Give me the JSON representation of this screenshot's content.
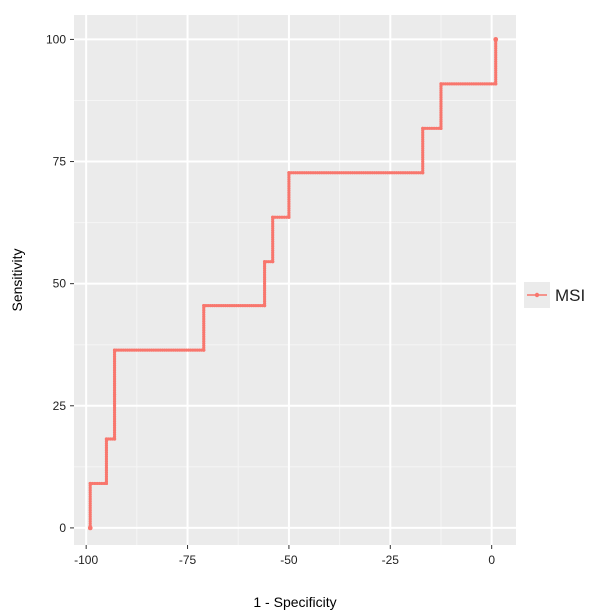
{
  "chart_data": {
    "type": "line",
    "title": "",
    "xlabel": "1 - Specificity",
    "ylabel": "Sensitivity",
    "xlim": [
      -103,
      6
    ],
    "ylim": [
      -3.5,
      105
    ],
    "x_ticks": [
      -100,
      -75,
      -50,
      -25,
      0
    ],
    "y_ticks": [
      0,
      25,
      50,
      75,
      100
    ],
    "grid": true,
    "legend_position": "right",
    "series": [
      {
        "name": "MSI",
        "color": "#f8766d",
        "step": true,
        "points": [
          [
            -99,
            0
          ],
          [
            -99,
            9.1
          ],
          [
            -95,
            9.1
          ],
          [
            -95,
            18.2
          ],
          [
            -93,
            18.2
          ],
          [
            -93,
            27.3
          ],
          [
            -93,
            36.4
          ],
          [
            -71,
            36.4
          ],
          [
            -71,
            45.5
          ],
          [
            -56,
            45.5
          ],
          [
            -56,
            54.5
          ],
          [
            -54,
            54.5
          ],
          [
            -54,
            63.6
          ],
          [
            -50,
            63.6
          ],
          [
            -50,
            72.7
          ],
          [
            -17,
            72.7
          ],
          [
            -17,
            81.8
          ],
          [
            -12.5,
            81.8
          ],
          [
            -12.5,
            90.9
          ],
          [
            1,
            90.9
          ],
          [
            1,
            100
          ]
        ]
      }
    ]
  }
}
